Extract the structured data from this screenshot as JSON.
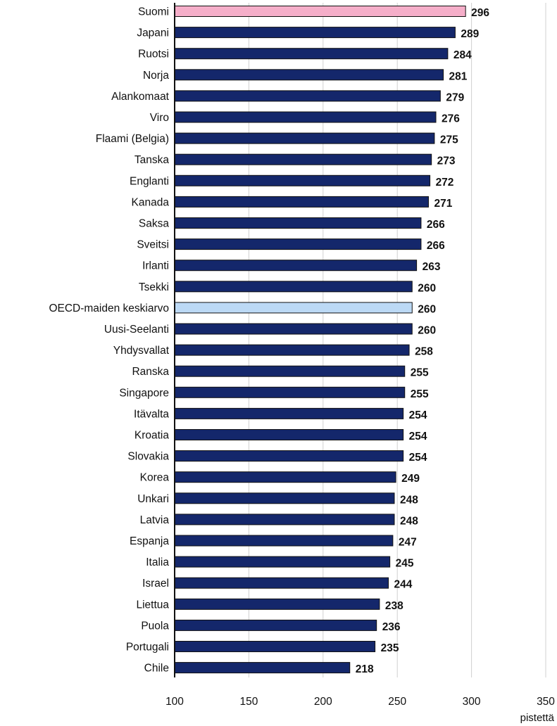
{
  "chart_data": {
    "type": "bar",
    "orientation": "horizontal",
    "categories": [
      "Suomi",
      "Japani",
      "Ruotsi",
      "Norja",
      "Alankomaat",
      "Viro",
      "Flaami (Belgia)",
      "Tanska",
      "Englanti",
      "Kanada",
      "Saksa",
      "Sveitsi",
      "Irlanti",
      "Tsekki",
      "OECD-maiden keskiarvo",
      "Uusi-Seelanti",
      "Yhdysvallat",
      "Ranska",
      "Singapore",
      "Itävalta",
      "Kroatia",
      "Slovakia",
      "Korea",
      "Unkari",
      "Latvia",
      "Espanja",
      "Italia",
      "Israel",
      "Liettua",
      "Puola",
      "Portugali",
      "Chile"
    ],
    "values": [
      296,
      289,
      284,
      281,
      279,
      276,
      275,
      273,
      272,
      271,
      266,
      266,
      263,
      260,
      260,
      260,
      258,
      255,
      255,
      254,
      254,
      254,
      249,
      248,
      248,
      247,
      245,
      244,
      238,
      236,
      235,
      218
    ],
    "xlim": [
      100,
      350
    ],
    "x_ticks": [
      100,
      150,
      200,
      250,
      300,
      350
    ],
    "x_tick_labels": [
      "100",
      "150",
      "200",
      "250",
      "300",
      "350"
    ],
    "xlabel": "pistettä",
    "grid": "vertical",
    "colors": {
      "default": "#14276b",
      "Suomi": "#f5aec9",
      "OECD-maiden keskiarvo": "#bcd9f5",
      "grid": "#d0d0d0",
      "axis": "#111111",
      "bar_stroke": "#111111"
    }
  }
}
